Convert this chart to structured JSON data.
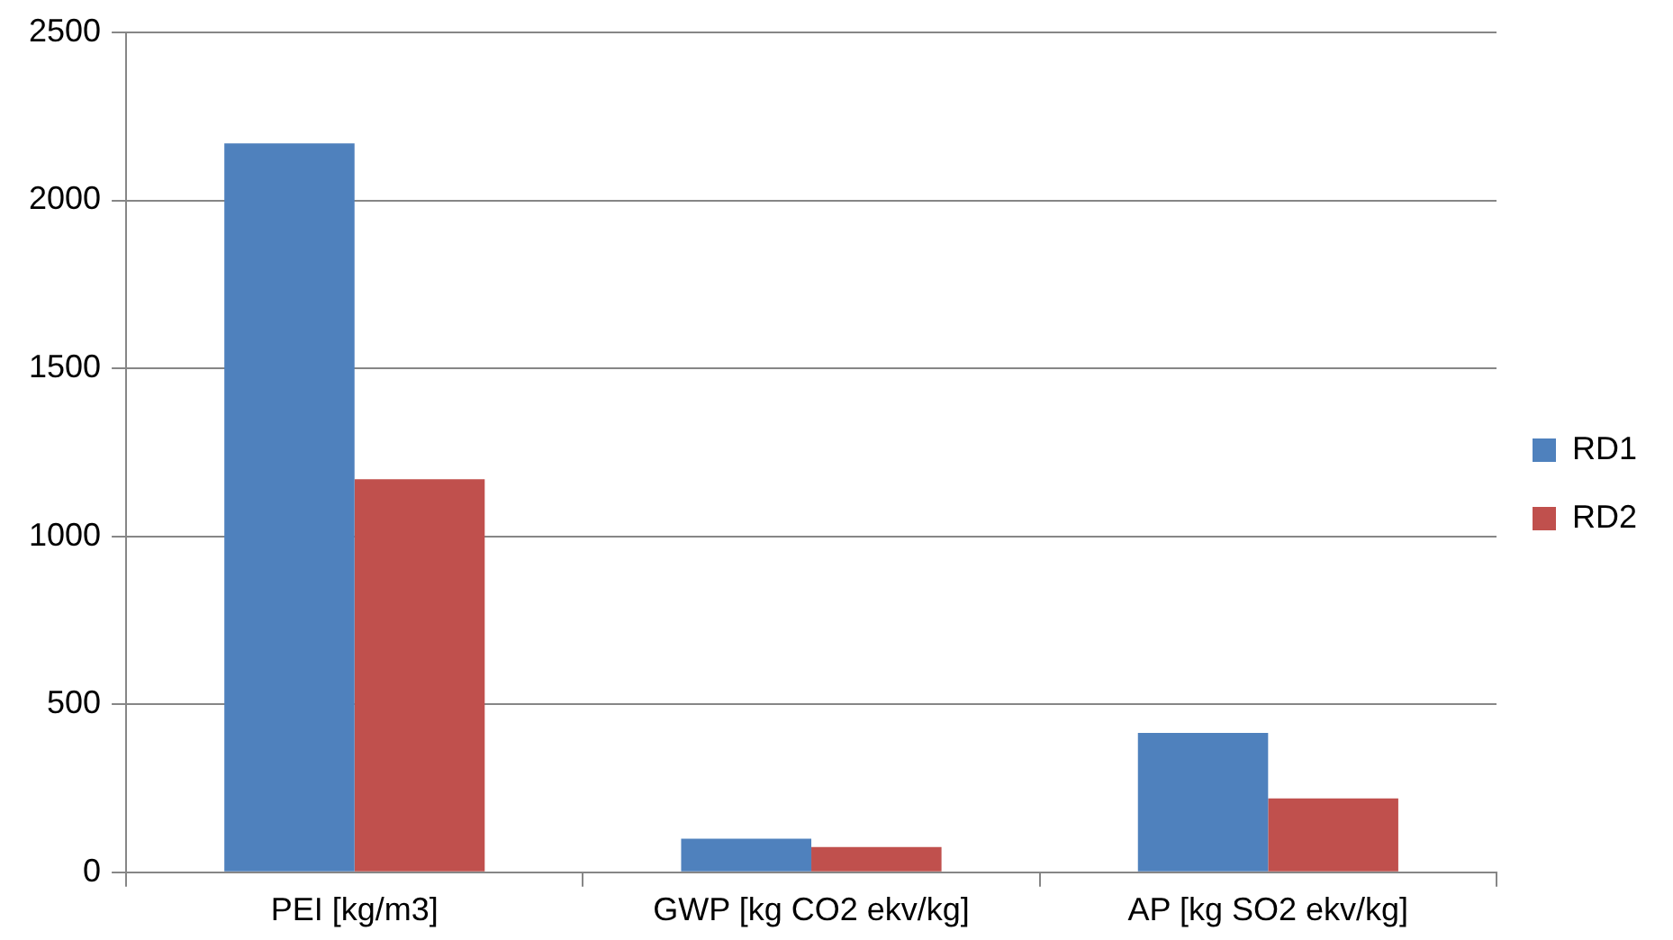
{
  "chart_data": {
    "type": "bar",
    "categories": [
      "PEI [kg/m3]",
      "GWP [kg CO2 ekv/kg]",
      "AP [kg SO2 ekv/kg]"
    ],
    "series": [
      {
        "name": "RD1",
        "color": "#4f81bd",
        "values": [
          2170,
          100,
          415
        ]
      },
      {
        "name": "RD2",
        "color": "#c0504d",
        "values": [
          1170,
          75,
          220
        ]
      }
    ],
    "ylim": [
      0,
      2500
    ],
    "yticks": [
      0,
      500,
      1000,
      1500,
      2000,
      2500
    ],
    "grid": "y",
    "legend": "right"
  }
}
